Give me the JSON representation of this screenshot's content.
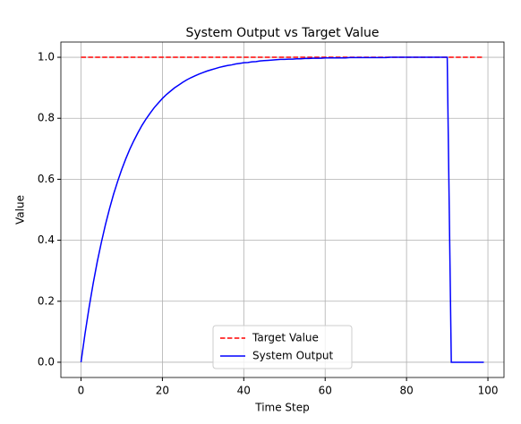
{
  "chart_data": {
    "type": "line",
    "title": "System Output vs Target Value",
    "x_label": "Time Step",
    "y_label": "Value",
    "x": [
      0,
      1,
      2,
      3,
      4,
      5,
      6,
      7,
      8,
      9,
      10,
      11,
      12,
      13,
      14,
      15,
      16,
      17,
      18,
      19,
      20,
      21,
      22,
      23,
      24,
      25,
      26,
      27,
      28,
      29,
      30,
      31,
      32,
      33,
      34,
      35,
      36,
      37,
      38,
      39,
      40,
      41,
      42,
      43,
      44,
      45,
      46,
      47,
      48,
      49,
      50,
      51,
      52,
      53,
      54,
      55,
      56,
      57,
      58,
      59,
      60,
      61,
      62,
      63,
      64,
      65,
      66,
      67,
      68,
      69,
      70,
      71,
      72,
      73,
      74,
      75,
      76,
      77,
      78,
      79,
      80,
      81,
      82,
      83,
      84,
      85,
      86,
      87,
      88,
      89,
      90,
      91,
      92,
      93,
      94,
      95,
      96,
      97,
      98,
      99
    ],
    "series": [
      {
        "name": "Target Value",
        "color": "red",
        "style": "dashed",
        "values": [
          1,
          1,
          1,
          1,
          1,
          1,
          1,
          1,
          1,
          1,
          1,
          1,
          1,
          1,
          1,
          1,
          1,
          1,
          1,
          1,
          1,
          1,
          1,
          1,
          1,
          1,
          1,
          1,
          1,
          1,
          1,
          1,
          1,
          1,
          1,
          1,
          1,
          1,
          1,
          1,
          1,
          1,
          1,
          1,
          1,
          1,
          1,
          1,
          1,
          1,
          1,
          1,
          1,
          1,
          1,
          1,
          1,
          1,
          1,
          1,
          1,
          1,
          1,
          1,
          1,
          1,
          1,
          1,
          1,
          1,
          1,
          1,
          1,
          1,
          1,
          1,
          1,
          1,
          1,
          1,
          1,
          1,
          1,
          1,
          1,
          1,
          1,
          1,
          1,
          1,
          1,
          1,
          1,
          1,
          1,
          1,
          1,
          1,
          1,
          1
        ]
      },
      {
        "name": "System Output",
        "color": "blue",
        "style": "solid",
        "values": [
          0,
          0.095,
          0.181,
          0.259,
          0.33,
          0.393,
          0.451,
          0.503,
          0.551,
          0.593,
          0.632,
          0.667,
          0.699,
          0.727,
          0.753,
          0.777,
          0.798,
          0.817,
          0.835,
          0.85,
          0.865,
          0.878,
          0.889,
          0.9,
          0.909,
          0.918,
          0.926,
          0.933,
          0.939,
          0.945,
          0.95,
          0.955,
          0.959,
          0.963,
          0.967,
          0.97,
          0.973,
          0.975,
          0.978,
          0.98,
          0.982,
          0.983,
          0.985,
          0.986,
          0.988,
          0.989,
          0.99,
          0.991,
          0.992,
          0.993,
          0.993,
          0.994,
          0.994,
          0.995,
          0.995,
          0.996,
          0.996,
          0.997,
          0.997,
          0.997,
          0.998,
          0.998,
          0.998,
          0.998,
          0.998,
          0.998,
          0.999,
          0.999,
          0.999,
          0.999,
          0.999,
          0.999,
          0.999,
          0.999,
          0.999,
          0.999,
          1,
          1,
          1,
          1,
          1,
          1,
          1,
          1,
          1,
          1,
          1,
          1,
          1,
          1,
          1,
          0,
          0,
          0,
          0,
          0,
          0,
          0,
          0,
          0
        ]
      }
    ],
    "xlim": [
      -4.95,
      103.95
    ],
    "ylim": [
      -0.05,
      1.05
    ],
    "xticks": [
      0,
      20,
      40,
      60,
      80,
      100
    ],
    "yticks": [
      {
        "value": 0,
        "label": "0.0"
      },
      {
        "value": 0.2,
        "label": "0.2"
      },
      {
        "value": 0.4,
        "label": "0.4"
      },
      {
        "value": 0.6,
        "label": "0.6"
      },
      {
        "value": 0.8,
        "label": "0.8"
      },
      {
        "value": 1,
        "label": "1.0"
      }
    ],
    "grid": true,
    "legend": "lower center"
  }
}
